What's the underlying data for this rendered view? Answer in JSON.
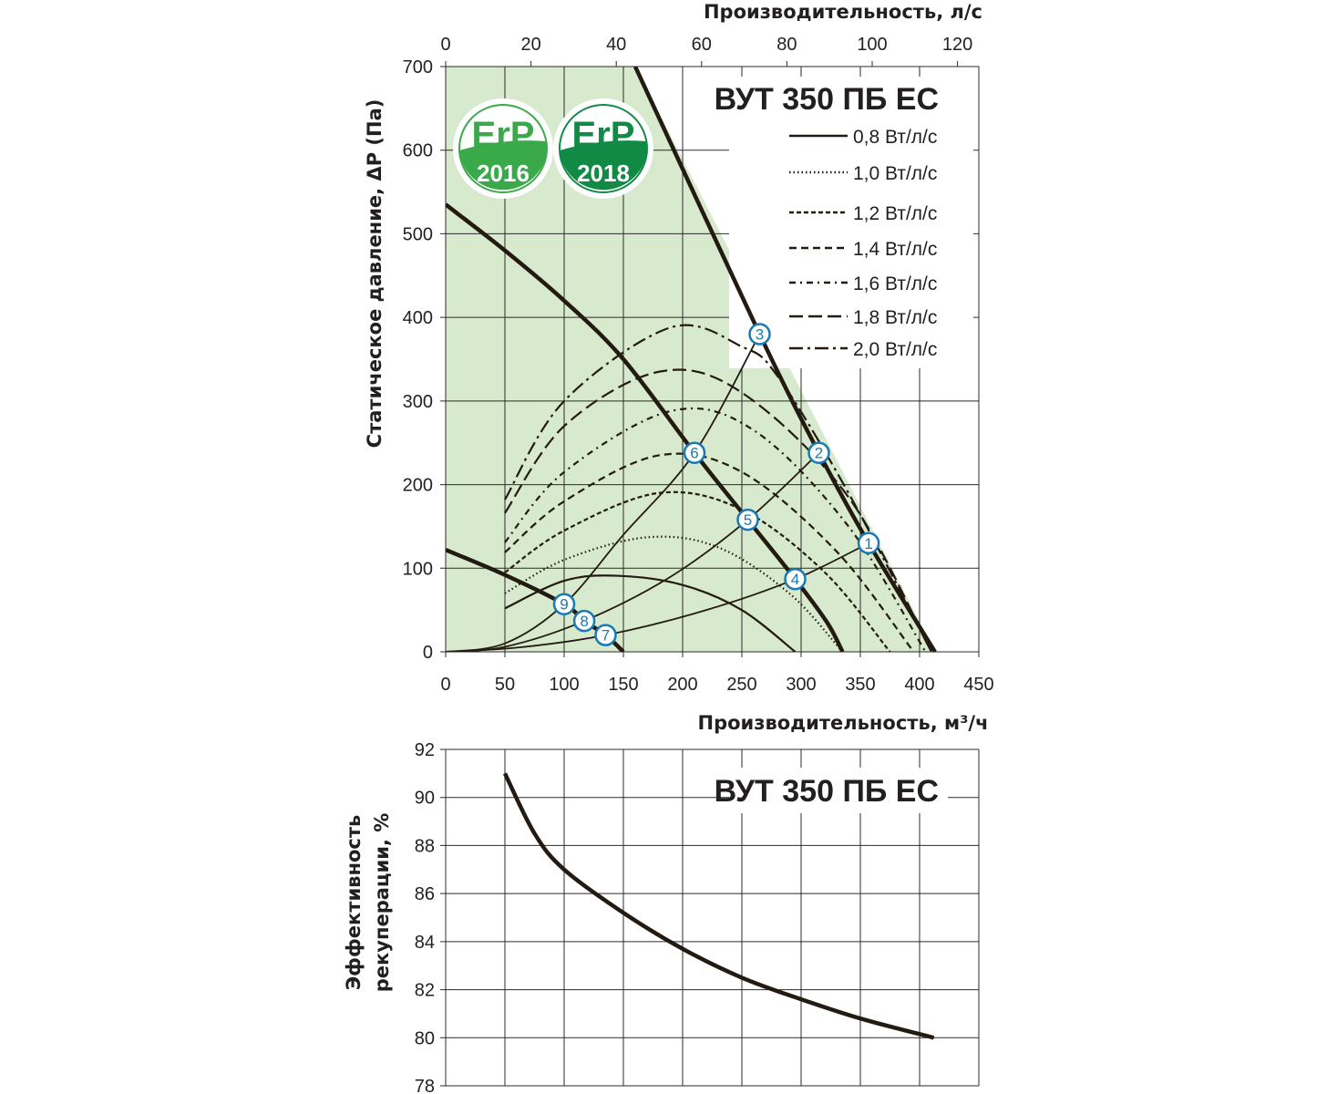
{
  "chart_data": [
    {
      "type": "line",
      "title": "ВУТ 350 ПБ ЕС",
      "xlabel": "Производительность, м³/ч",
      "x2label": "Производительность, л/с",
      "ylabel": "Статическое давление, ΔP (Па)",
      "xlim": [
        0,
        450
      ],
      "x2lim": [
        0,
        125
      ],
      "ylim": [
        0,
        700
      ],
      "xticks": [
        "0",
        "50",
        "100",
        "150",
        "200",
        "250",
        "300",
        "350",
        "400",
        "450"
      ],
      "x2ticks": [
        "0",
        "20",
        "40",
        "60",
        "80",
        "100",
        "120"
      ],
      "yticks": [
        "0",
        "100",
        "200",
        "300",
        "400",
        "500",
        "600",
        "700"
      ],
      "grid": true,
      "legend_position": "top-right",
      "erp_badges": [
        {
          "label": "ErP",
          "year": "2016",
          "color": "#3aa94a"
        },
        {
          "label": "ErP",
          "year": "2018",
          "color": "#108a45"
        }
      ],
      "erp_region": [
        [
          0,
          0
        ],
        [
          0,
          700
        ],
        [
          160,
          700
        ],
        [
          413,
          0
        ]
      ],
      "fan_curves": [
        {
          "name": "max",
          "points": [
            [
              160,
              700
            ],
            [
              265,
              380
            ],
            [
              315,
              238
            ],
            [
              357,
              130
            ],
            [
              413,
              0
            ]
          ]
        },
        {
          "name": "mid",
          "points": [
            [
              0,
              535
            ],
            [
              50,
              480
            ],
            [
              100,
              420
            ],
            [
              150,
              350
            ],
            [
              210,
              238
            ],
            [
              255,
              158
            ],
            [
              295,
              87
            ],
            [
              322,
              35
            ],
            [
              335,
              0
            ]
          ]
        },
        {
          "name": "min",
          "points": [
            [
              0,
              122
            ],
            [
              50,
              92
            ],
            [
              100,
              57
            ],
            [
              117,
              37
            ],
            [
              135,
              20
            ],
            [
              150,
              0
            ]
          ]
        }
      ],
      "system_curves": [
        {
          "name": "A",
          "points": [
            [
              0,
              0
            ],
            [
              50,
              10
            ],
            [
              100,
              57
            ],
            [
              150,
              140
            ],
            [
              210,
              238
            ],
            [
              265,
              380
            ]
          ]
        },
        {
          "name": "B",
          "points": [
            [
              0,
              0
            ],
            [
              50,
              6
            ],
            [
              117,
              37
            ],
            [
              190,
              90
            ],
            [
              255,
              158
            ],
            [
              315,
              238
            ]
          ]
        },
        {
          "name": "C",
          "points": [
            [
              0,
              0
            ],
            [
              60,
              5
            ],
            [
              135,
              20
            ],
            [
              220,
              50
            ],
            [
              295,
              87
            ],
            [
              357,
              130
            ]
          ]
        }
      ],
      "series": [
        {
          "name": "0,8 Вт/л/с",
          "dash": "solid",
          "points": [
            [
              50,
              52
            ],
            [
              100,
              85
            ],
            [
              145,
              91
            ],
            [
              200,
              80
            ],
            [
              250,
              50
            ],
            [
              295,
              0
            ]
          ]
        },
        {
          "name": "1,0 Вт/л/с",
          "dash": "dotted",
          "points": [
            [
              50,
              70
            ],
            [
              100,
              110
            ],
            [
              170,
              137
            ],
            [
              230,
              125
            ],
            [
              290,
              70
            ],
            [
              335,
              0
            ]
          ]
        },
        {
          "name": "1,2 Вт/л/с",
          "dash": "dash-short",
          "points": [
            [
              50,
              95
            ],
            [
              100,
              145
            ],
            [
              180,
              190
            ],
            [
              250,
              170
            ],
            [
              320,
              95
            ],
            [
              375,
              0
            ]
          ]
        },
        {
          "name": "1,4 Вт/л/с",
          "dash": "dash",
          "points": [
            [
              50,
              119
            ],
            [
              100,
              180
            ],
            [
              180,
              235
            ],
            [
              250,
              215
            ],
            [
              330,
              120
            ],
            [
              395,
              0
            ]
          ]
        },
        {
          "name": "1,6 Вт/л/с",
          "dash": "dash-dot",
          "points": [
            [
              50,
              131
            ],
            [
              100,
              215
            ],
            [
              190,
              288
            ],
            [
              260,
              265
            ],
            [
              340,
              150
            ],
            [
              405,
              0
            ]
          ]
        },
        {
          "name": "1,8 Вт/л/с",
          "dash": "long-dash",
          "points": [
            [
              50,
              166
            ],
            [
              100,
              270
            ],
            [
              180,
              335
            ],
            [
              250,
              310
            ],
            [
              340,
              185
            ],
            [
              410,
              0
            ]
          ]
        },
        {
          "name": "2,0 Вт/л/с",
          "dash": "long-dash-dot",
          "points": [
            [
              50,
              182
            ],
            [
              100,
              300
            ],
            [
              190,
              388
            ],
            [
              250,
              365
            ],
            [
              280,
              330
            ],
            [
              340,
              190
            ],
            [
              410,
              0
            ]
          ]
        }
      ],
      "markers": [
        {
          "label": "1",
          "x": 357,
          "y": 130
        },
        {
          "label": "2",
          "x": 315,
          "y": 238
        },
        {
          "label": "3",
          "x": 265,
          "y": 380
        },
        {
          "label": "4",
          "x": 295,
          "y": 87
        },
        {
          "label": "5",
          "x": 255,
          "y": 158
        },
        {
          "label": "6",
          "x": 210,
          "y": 238
        },
        {
          "label": "7",
          "x": 135,
          "y": 20
        },
        {
          "label": "8",
          "x": 117,
          "y": 37
        },
        {
          "label": "9",
          "x": 100,
          "y": 57
        }
      ]
    },
    {
      "type": "line",
      "title": "ВУТ 350 ПБ ЕС",
      "ylabel_line1": "Эффективность",
      "ylabel_line2": "рекуперации, %",
      "xlim": [
        0,
        450
      ],
      "ylim": [
        78,
        92
      ],
      "yticks": [
        "78",
        "80",
        "82",
        "84",
        "86",
        "88",
        "90",
        "92"
      ],
      "grid": true,
      "series": [
        {
          "name": "efficiency",
          "points": [
            [
              50,
              91
            ],
            [
              75,
              88.5
            ],
            [
              100,
              87
            ],
            [
              150,
              85.2
            ],
            [
              200,
              83.7
            ],
            [
              250,
              82.5
            ],
            [
              300,
              81.6
            ],
            [
              350,
              80.8
            ],
            [
              412,
              80
            ]
          ]
        }
      ]
    }
  ]
}
